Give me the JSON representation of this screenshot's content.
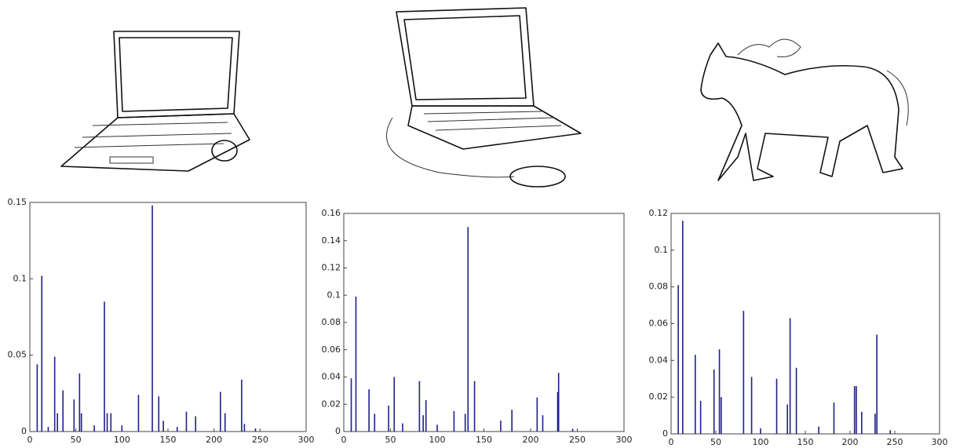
{
  "chart_data": [
    {
      "type": "bar",
      "color": "#1f1f8c",
      "x": [
        8,
        13,
        20,
        27,
        30,
        36,
        48,
        54,
        56,
        70,
        81,
        84,
        88,
        100,
        118,
        133,
        140,
        145,
        160,
        170,
        180,
        207,
        212,
        230,
        233,
        245
      ],
      "values": [
        0.044,
        0.102,
        0.003,
        0.049,
        0.012,
        0.027,
        0.021,
        0.038,
        0.012,
        0.004,
        0.085,
        0.012,
        0.012,
        0.004,
        0.024,
        0.148,
        0.023,
        0.007,
        0.003,
        0.013,
        0.01,
        0.026,
        0.012,
        0.034,
        0.005,
        0.002
      ],
      "xlim": [
        0,
        300
      ],
      "xticks": [
        0,
        50,
        100,
        150,
        200,
        250,
        300
      ],
      "ylim": [
        0,
        0.15
      ],
      "yticks": [
        0,
        0.05,
        0.1,
        0.15
      ]
    },
    {
      "type": "bar",
      "color": "#1f1f8c",
      "x": [
        8,
        13,
        27,
        33,
        48,
        54,
        63,
        81,
        85,
        88,
        100,
        118,
        130,
        133,
        140,
        168,
        180,
        207,
        213,
        229,
        230,
        245
      ],
      "values": [
        0.039,
        0.099,
        0.031,
        0.013,
        0.019,
        0.04,
        0.006,
        0.037,
        0.012,
        0.023,
        0.005,
        0.015,
        0.013,
        0.15,
        0.037,
        0.008,
        0.016,
        0.025,
        0.012,
        0.029,
        0.043,
        0.002
      ],
      "xlim": [
        0,
        300
      ],
      "xticks": [
        0,
        50,
        100,
        150,
        200,
        250,
        300
      ],
      "ylim": [
        0,
        0.16
      ],
      "yticks": [
        0,
        0.02,
        0.04,
        0.06,
        0.08,
        0.1,
        0.12,
        0.14,
        0.16
      ]
    },
    {
      "type": "bar",
      "color": "#1f1f8c",
      "x": [
        8,
        13,
        27,
        33,
        48,
        54,
        56,
        81,
        90,
        100,
        118,
        130,
        133,
        140,
        165,
        182,
        205,
        207,
        213,
        228,
        230,
        245
      ],
      "values": [
        0.081,
        0.116,
        0.043,
        0.018,
        0.035,
        0.046,
        0.02,
        0.067,
        0.031,
        0.003,
        0.03,
        0.016,
        0.063,
        0.036,
        0.004,
        0.017,
        0.026,
        0.026,
        0.012,
        0.011,
        0.054,
        0.002
      ],
      "xlim": [
        0,
        300
      ],
      "xticks": [
        0,
        50,
        100,
        150,
        200,
        250,
        300
      ],
      "ylim": [
        0,
        0.12
      ],
      "yticks": [
        0,
        0.02,
        0.04,
        0.06,
        0.08,
        0.1,
        0.12
      ]
    }
  ]
}
